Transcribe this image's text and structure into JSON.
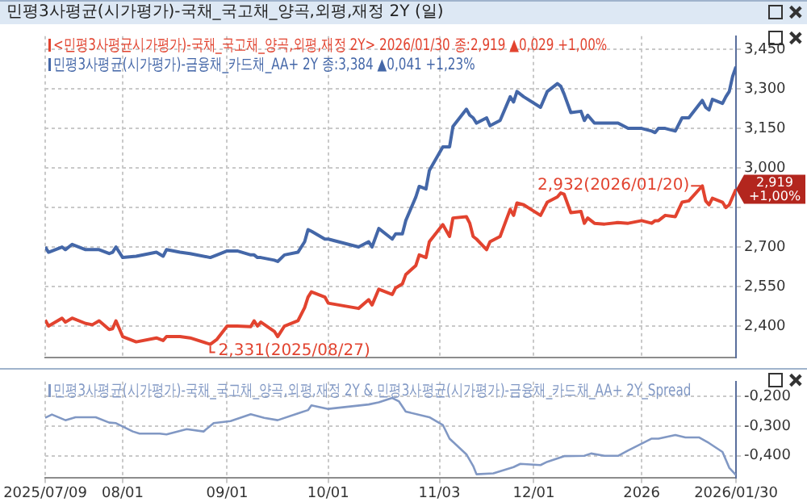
{
  "chart_data": [
    {
      "type": "line",
      "title": "민평3사평균(시가평가)-국채_국고채_양곡,외평,재정 2Y (일)",
      "x": [
        "2025-07-09",
        "2025-07-10",
        "2025-07-14",
        "2025-07-15",
        "2025-07-17",
        "2025-07-21",
        "2025-07-23",
        "2025-07-25",
        "2025-07-28",
        "2025-07-29",
        "2025-07-30",
        "2025-08-01",
        "2025-08-05",
        "2025-08-11",
        "2025-08-13",
        "2025-08-14",
        "2025-08-18",
        "2025-08-21",
        "2025-08-27",
        "2025-08-29",
        "2025-09-01",
        "2025-09-04",
        "2025-09-08",
        "2025-09-09",
        "2025-09-10",
        "2025-09-11",
        "2025-09-15",
        "2025-09-16",
        "2025-09-18",
        "2025-09-22",
        "2025-09-24",
        "2025-09-25",
        "2025-09-26",
        "2025-09-30",
        "2025-10-01",
        "2025-10-10",
        "2025-10-13",
        "2025-10-14",
        "2025-10-16",
        "2025-10-20",
        "2025-10-21",
        "2025-10-23",
        "2025-10-24",
        "2025-10-27",
        "2025-10-28",
        "2025-10-30",
        "2025-10-31",
        "2025-11-04",
        "2025-11-06",
        "2025-11-07",
        "2025-11-11",
        "2025-11-12",
        "2025-11-13",
        "2025-11-14",
        "2025-11-17",
        "2025-11-18",
        "2025-11-21",
        "2025-11-24",
        "2025-11-25",
        "2025-11-26",
        "2025-11-28",
        "2025-12-03",
        "2025-12-05",
        "2025-12-08",
        "2025-12-09",
        "2025-12-10",
        "2025-12-12",
        "2025-12-15",
        "2025-12-16",
        "2025-12-17",
        "2025-12-19",
        "2025-12-22",
        "2025-12-26",
        "2025-12-29",
        "2026-01-02",
        "2026-01-05",
        "2026-01-06",
        "2026-01-07",
        "2026-01-09",
        "2026-01-12",
        "2026-01-14",
        "2026-01-16",
        "2026-01-20",
        "2026-01-21",
        "2026-01-22",
        "2026-01-23",
        "2026-01-26",
        "2026-01-27",
        "2026-01-28",
        "2026-01-29",
        "2026-01-30"
      ],
      "series": [
        {
          "name": "<민평3사평균시가평가)-국채_국고채_양곡,외평,재정 2Y> 2026/01/30 종:2,919 ▲0,029 +1,00%",
          "color": "#e2432f",
          "values": [
            2.423,
            2.4,
            2.43,
            2.415,
            2.43,
            2.41,
            2.405,
            2.42,
            2.387,
            2.39,
            2.42,
            2.36,
            2.34,
            2.355,
            2.345,
            2.36,
            2.36,
            2.355,
            2.331,
            2.35,
            2.4,
            2.4,
            2.398,
            2.42,
            2.4,
            2.415,
            2.38,
            2.36,
            2.4,
            2.42,
            2.47,
            2.51,
            2.53,
            2.51,
            2.487,
            2.467,
            2.5,
            2.48,
            2.54,
            2.52,
            2.545,
            2.56,
            2.595,
            2.63,
            2.67,
            2.66,
            2.72,
            2.785,
            2.74,
            2.81,
            2.815,
            2.79,
            2.74,
            2.73,
            2.69,
            2.72,
            2.74,
            2.843,
            2.82,
            2.867,
            2.86,
            2.82,
            2.87,
            2.89,
            2.905,
            2.9,
            2.83,
            2.835,
            2.79,
            2.81,
            2.79,
            2.787,
            2.793,
            2.79,
            2.8,
            2.79,
            2.8,
            2.8,
            2.82,
            2.815,
            2.87,
            2.875,
            2.932,
            2.875,
            2.86,
            2.885,
            2.87,
            2.85,
            2.86,
            2.89,
            2.919
          ]
        },
        {
          "name": "민평3사평균(시가평가)-금융채_카드채_AA+ 2Y 종:3,384 ▲0,041 +1,23%",
          "color": "#4467a8",
          "values": [
            2.7,
            2.68,
            2.7,
            2.69,
            2.71,
            2.69,
            2.69,
            2.69,
            2.675,
            2.68,
            2.7,
            2.66,
            2.665,
            2.68,
            2.665,
            2.69,
            2.68,
            2.675,
            2.66,
            2.67,
            2.685,
            2.685,
            2.67,
            2.67,
            2.66,
            2.66,
            2.65,
            2.645,
            2.67,
            2.68,
            2.72,
            2.766,
            2.76,
            2.73,
            2.73,
            2.7,
            2.72,
            2.7,
            2.77,
            2.73,
            2.75,
            2.75,
            2.8,
            2.89,
            2.93,
            2.92,
            2.99,
            3.08,
            3.08,
            3.157,
            3.223,
            3.2,
            3.19,
            3.17,
            3.19,
            3.16,
            3.18,
            3.27,
            3.25,
            3.29,
            3.27,
            3.23,
            3.29,
            3.32,
            3.31,
            3.28,
            3.21,
            3.215,
            3.18,
            3.2,
            3.17,
            3.17,
            3.17,
            3.15,
            3.15,
            3.14,
            3.134,
            3.15,
            3.15,
            3.14,
            3.19,
            3.19,
            3.256,
            3.23,
            3.22,
            3.26,
            3.245,
            3.27,
            3.29,
            3.347,
            3.384
          ]
        }
      ],
      "xlim": [
        "2025-07-09",
        "2026-01-30"
      ],
      "xticks": [
        {
          "value": "2025-07-09",
          "label": null
        },
        {
          "value": "2025-08-01",
          "label": null
        },
        {
          "value": "2025-09-01",
          "label": null
        },
        {
          "value": "2025-10-01",
          "label": null
        },
        {
          "value": "2025-11-03",
          "label": null
        },
        {
          "value": "2025-12-01",
          "label": null
        },
        {
          "value": "2026-01-02",
          "label": null
        },
        {
          "value": "2026-01-30",
          "label": null
        }
      ],
      "ylim": [
        2.28,
        3.5
      ],
      "yticks": [
        {
          "value": 2.4,
          "label": "2,400"
        },
        {
          "value": 2.55,
          "label": "2,550"
        },
        {
          "value": 2.7,
          "label": "2,700"
        },
        {
          "value": 2.85,
          "label": null
        },
        {
          "value": 3.0,
          "label": "3,000"
        },
        {
          "value": 3.15,
          "label": "3,150"
        },
        {
          "value": 3.3,
          "label": "3,300"
        },
        {
          "value": 3.45,
          "label": "3,450"
        }
      ],
      "tick_labels": "y",
      "grid": true,
      "legend": "top left",
      "annotations": [
        {
          "text": "2,331(2025/08/27)",
          "x": "2025-08-27",
          "y": 2.331
        },
        {
          "text": "2,932(2026/01/20)",
          "x": "2026-01-20",
          "y": 2.932
        },
        {
          "text": "2,919 +1,00%",
          "x": "2026-01-30",
          "y": 2.919
        }
      ]
    },
    {
      "type": "line",
      "x": [
        "2025-07-09",
        "2025-07-11",
        "2025-07-15",
        "2025-07-18",
        "2025-07-24",
        "2025-07-28",
        "2025-07-30",
        "2025-08-04",
        "2025-08-06",
        "2025-08-12",
        "2025-08-14",
        "2025-08-20",
        "2025-08-25",
        "2025-08-28",
        "2025-09-02",
        "2025-09-08",
        "2025-09-12",
        "2025-09-16",
        "2025-09-22",
        "2025-09-25",
        "2025-09-26",
        "2025-10-01",
        "2025-10-13",
        "2025-10-16",
        "2025-10-20",
        "2025-10-22",
        "2025-10-24",
        "2025-10-31",
        "2025-11-04",
        "2025-11-06",
        "2025-11-11",
        "2025-11-13",
        "2025-11-14",
        "2025-11-19",
        "2025-11-25",
        "2025-11-27",
        "2025-12-03",
        "2025-12-05",
        "2025-12-10",
        "2025-12-16",
        "2025-12-18",
        "2025-12-22",
        "2025-12-26",
        "2025-12-29",
        "2026-01-05",
        "2026-01-07",
        "2026-01-12",
        "2026-01-15",
        "2026-01-19",
        "2026-01-22",
        "2026-01-26",
        "2026-01-28",
        "2026-01-30"
      ],
      "series": [
        {
          "name": "민평3사평균(시가평가)-국채_국고채_양곡,외평,재정 2Y & 민평3사평균(시가평가)-금융채_카드채_AA+ 2Y_Spread",
          "color": "#8198c4",
          "values": [
            -0.272,
            -0.261,
            -0.28,
            -0.27,
            -0.27,
            -0.288,
            -0.29,
            -0.318,
            -0.325,
            -0.325,
            -0.328,
            -0.31,
            -0.318,
            -0.29,
            -0.283,
            -0.26,
            -0.272,
            -0.28,
            -0.257,
            -0.246,
            -0.23,
            -0.242,
            -0.227,
            -0.22,
            -0.205,
            -0.217,
            -0.251,
            -0.27,
            -0.296,
            -0.342,
            -0.395,
            -0.434,
            -0.462,
            -0.459,
            -0.438,
            -0.427,
            -0.431,
            -0.42,
            -0.401,
            -0.4,
            -0.392,
            -0.4,
            -0.4,
            -0.382,
            -0.342,
            -0.342,
            -0.33,
            -0.338,
            -0.338,
            -0.357,
            -0.387,
            -0.44,
            -0.465
          ]
        }
      ],
      "xlim": [
        "2025-07-09",
        "2026-01-30"
      ],
      "xticks": [
        {
          "value": "2025-07-09",
          "label": "2025/07/09"
        },
        {
          "value": "2025-08-01",
          "label": "08/01"
        },
        {
          "value": "2025-09-01",
          "label": "09/01"
        },
        {
          "value": "2025-10-01",
          "label": "10/01"
        },
        {
          "value": "2025-11-03",
          "label": "11/03"
        },
        {
          "value": "2025-12-01",
          "label": "12/01"
        },
        {
          "value": "2026-01-02",
          "label": "2026"
        },
        {
          "value": "2026-01-30",
          "label": "2026/01/30"
        }
      ],
      "ylim": [
        -0.475,
        -0.15
      ],
      "yticks": [
        {
          "value": -0.4,
          "label": "-0,400"
        },
        {
          "value": -0.3,
          "label": "-0,300"
        },
        {
          "value": -0.2,
          "label": "-0,200"
        }
      ],
      "grid": true,
      "legend": "top left"
    }
  ]
}
